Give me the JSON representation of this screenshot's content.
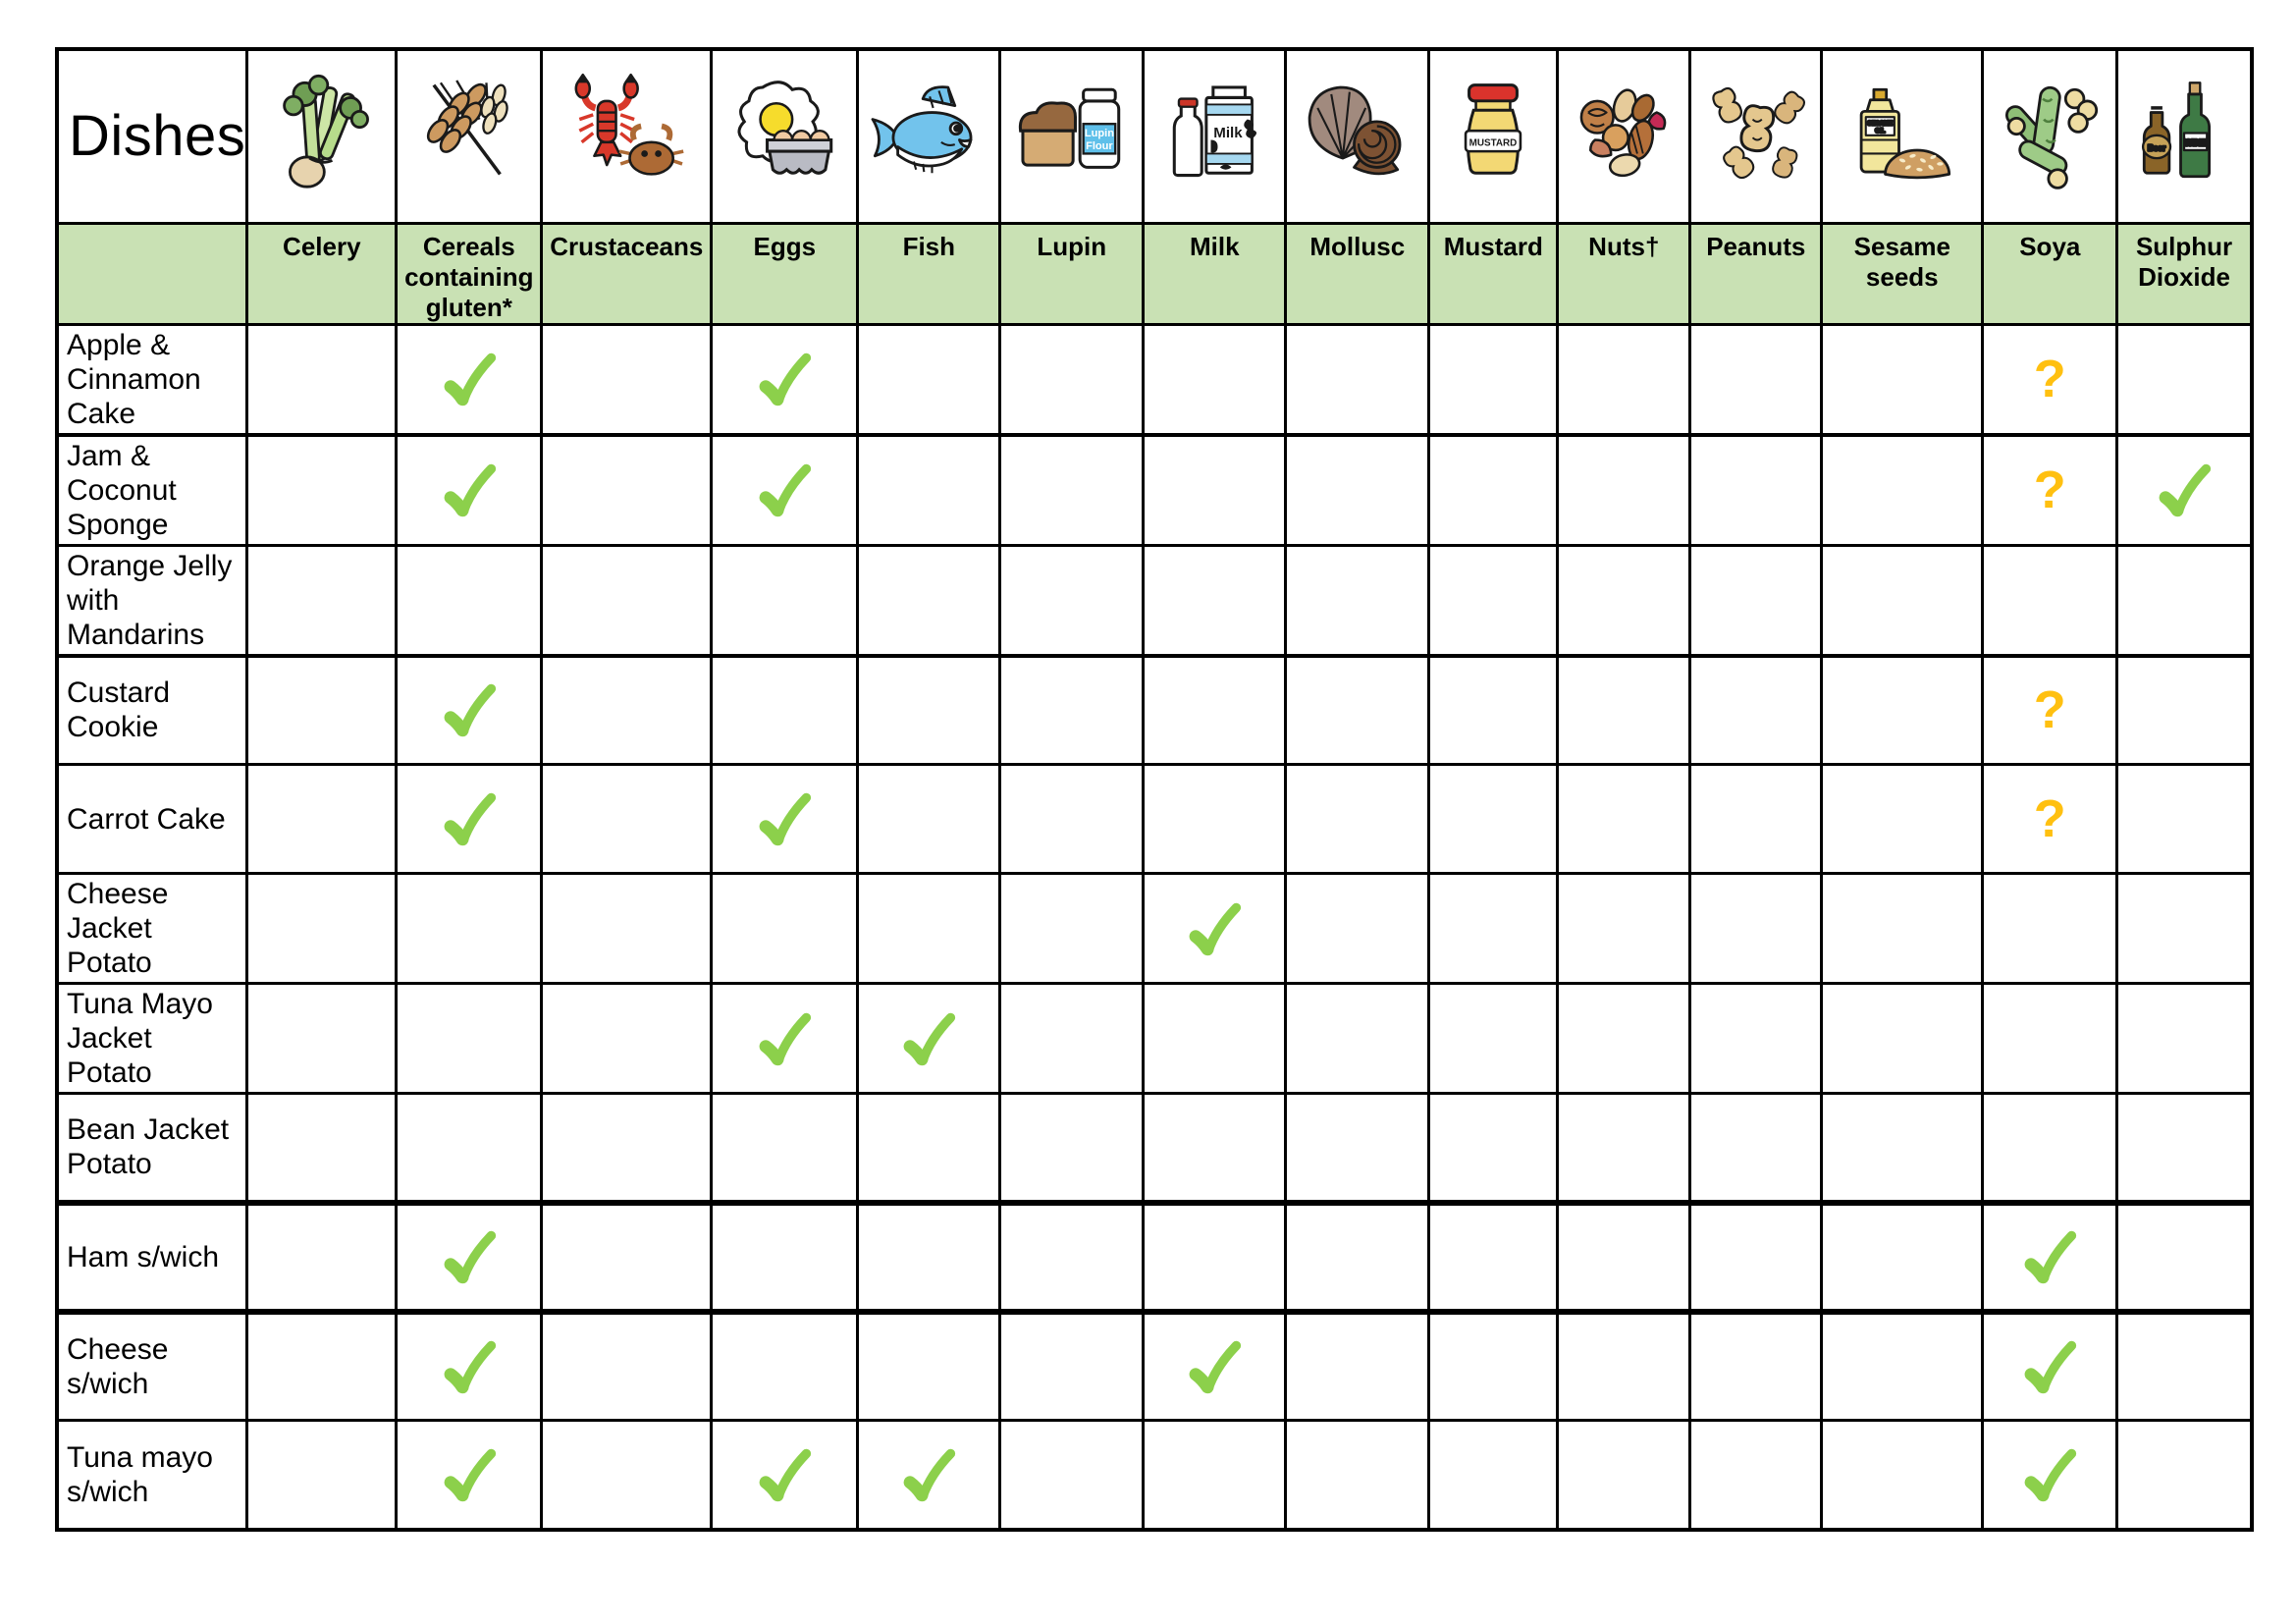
{
  "page": {
    "background": "#ffffff"
  },
  "table": {
    "title": "Dishes",
    "header_bg": "#c9e1b4",
    "check_color": "#8CD04B",
    "question_color": "#FFC010",
    "marks": {
      "check": "✓",
      "question": "?"
    },
    "columns": [
      {
        "label": "Celery",
        "icon": "celery-icon",
        "icon_labels": []
      },
      {
        "label": "Cereals containing gluten*",
        "icon": "wheat-icon",
        "icon_labels": []
      },
      {
        "label": "Crustaceans",
        "icon": "crustaceans-icon",
        "icon_labels": []
      },
      {
        "label": "Eggs",
        "icon": "eggs-icon",
        "icon_labels": []
      },
      {
        "label": "Fish",
        "icon": "fish-icon",
        "icon_labels": []
      },
      {
        "label": "Lupin",
        "icon": "lupin-icon",
        "icon_labels": [
          "Lupin",
          "Flour"
        ]
      },
      {
        "label": "Milk",
        "icon": "milk-icon",
        "icon_labels": [
          "Milk"
        ]
      },
      {
        "label": "Mollusc",
        "icon": "mollusc-icon",
        "icon_labels": []
      },
      {
        "label": "Mustard",
        "icon": "mustard-icon",
        "icon_labels": [
          "MUSTARD"
        ]
      },
      {
        "label": "Nuts†",
        "icon": "nuts-icon",
        "icon_labels": []
      },
      {
        "label": "Peanuts",
        "icon": "peanuts-icon",
        "icon_labels": []
      },
      {
        "label": "Sesame seeds",
        "icon": "sesame-icon",
        "icon_labels": [
          "SESAME",
          "OIL"
        ]
      },
      {
        "label": "Soya",
        "icon": "soya-icon",
        "icon_labels": []
      },
      {
        "label": "Sulphur Dioxide",
        "icon": "sulphur-dioxide-icon",
        "icon_labels": [
          "Beer",
          "WINE"
        ]
      }
    ],
    "rows": [
      {
        "dish": "Apple & Cinnamon Cake",
        "cells": [
          "",
          "check",
          "",
          "check",
          "",
          "",
          "",
          "",
          "",
          "",
          "",
          "",
          "question",
          ""
        ]
      },
      {
        "dish": "Jam & Coconut Sponge",
        "cells": [
          "",
          "check",
          "",
          "check",
          "",
          "",
          "",
          "",
          "",
          "",
          "",
          "",
          "question",
          "check"
        ]
      },
      {
        "dish": "Orange Jelly with Mandarins",
        "cells": [
          "",
          "",
          "",
          "",
          "",
          "",
          "",
          "",
          "",
          "",
          "",
          "",
          "",
          ""
        ]
      },
      {
        "dish": "Custard Cookie",
        "cells": [
          "",
          "check",
          "",
          "",
          "",
          "",
          "",
          "",
          "",
          "",
          "",
          "",
          "question",
          ""
        ]
      },
      {
        "dish": "Carrot Cake",
        "cells": [
          "",
          "check",
          "",
          "check",
          "",
          "",
          "",
          "",
          "",
          "",
          "",
          "",
          "question",
          ""
        ]
      },
      {
        "dish": "Cheese Jacket Potato",
        "cells": [
          "",
          "",
          "",
          "",
          "",
          "",
          "check",
          "",
          "",
          "",
          "",
          "",
          "",
          ""
        ]
      },
      {
        "dish": "Tuna Mayo Jacket Potato",
        "cells": [
          "",
          "",
          "",
          "check",
          "check",
          "",
          "",
          "",
          "",
          "",
          "",
          "",
          "",
          ""
        ]
      },
      {
        "dish": "Bean Jacket Potato",
        "cells": [
          "",
          "",
          "",
          "",
          "",
          "",
          "",
          "",
          "",
          "",
          "",
          "",
          "",
          ""
        ]
      },
      {
        "dish": "Ham s/wich",
        "cells": [
          "",
          "check",
          "",
          "",
          "",
          "",
          "",
          "",
          "",
          "",
          "",
          "",
          "check",
          ""
        ]
      },
      {
        "dish": "Cheese s/wich",
        "cells": [
          "",
          "check",
          "",
          "",
          "",
          "",
          "check",
          "",
          "",
          "",
          "",
          "",
          "check",
          ""
        ]
      },
      {
        "dish": "Tuna mayo s/wich",
        "cells": [
          "",
          "check",
          "",
          "check",
          "check",
          "",
          "",
          "",
          "",
          "",
          "",
          "",
          "check",
          ""
        ]
      }
    ]
  }
}
